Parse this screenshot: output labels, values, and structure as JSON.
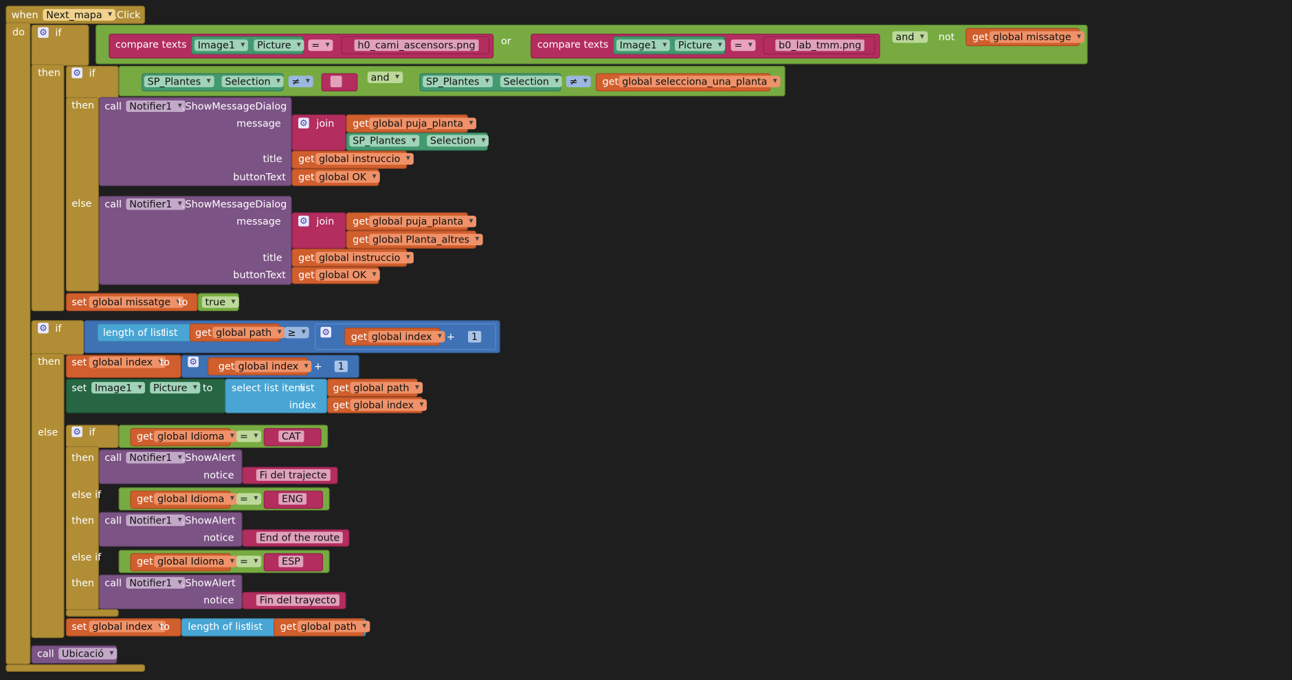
{
  "kw": {
    "when": "when",
    "do": "do",
    "if": "if",
    "then": "then",
    "else": "else",
    "else_if": "else if",
    "call": "call",
    "set": "set",
    "to": "to",
    "get": "get",
    "join": "join",
    "not": "not",
    "or": "or",
    "and": "and",
    "compare_texts": "compare texts",
    "length_of_list": "length of list",
    "list": "list",
    "select_list_item": "select list item",
    "index": "index",
    "message": "message",
    "title": "title",
    "buttonText": "buttonText",
    "notice": "notice",
    "plus": "+",
    "eq": "=",
    "neq": "≠",
    "gte": "≥",
    "quote": "\""
  },
  "event": {
    "component": "Next_mapa",
    "event": ".Click"
  },
  "values": {
    "image1": "Image1",
    "picture": "Picture",
    "str_h0": "h0_cami_ascensors.png",
    "str_b0": "b0_lab_tmm.png",
    "missatge": "global missatge",
    "sp_plantes": "SP_Plantes",
    "selection": "Selection",
    "str_empty": "",
    "selecciona": "global selecciona_una_planta",
    "notifier": "Notifier1",
    "show_msg": ".ShowMessageDialog",
    "puja": "global puja_planta",
    "altres": "global Planta_altres",
    "instruccio": "global instruccio",
    "ok": "global OK",
    "true": "true",
    "path": "global path",
    "idx": "global index",
    "one": "1",
    "idioma": "global Idioma",
    "cat": "CAT",
    "eng": "ENG",
    "esp": "ESP",
    "alert": ".ShowAlert",
    "fi_cat": "Fi del trajecte",
    "fi_eng": "End of the route",
    "fi_esp": "Fin del trayecto",
    "ubicacio": "Ubicació"
  }
}
